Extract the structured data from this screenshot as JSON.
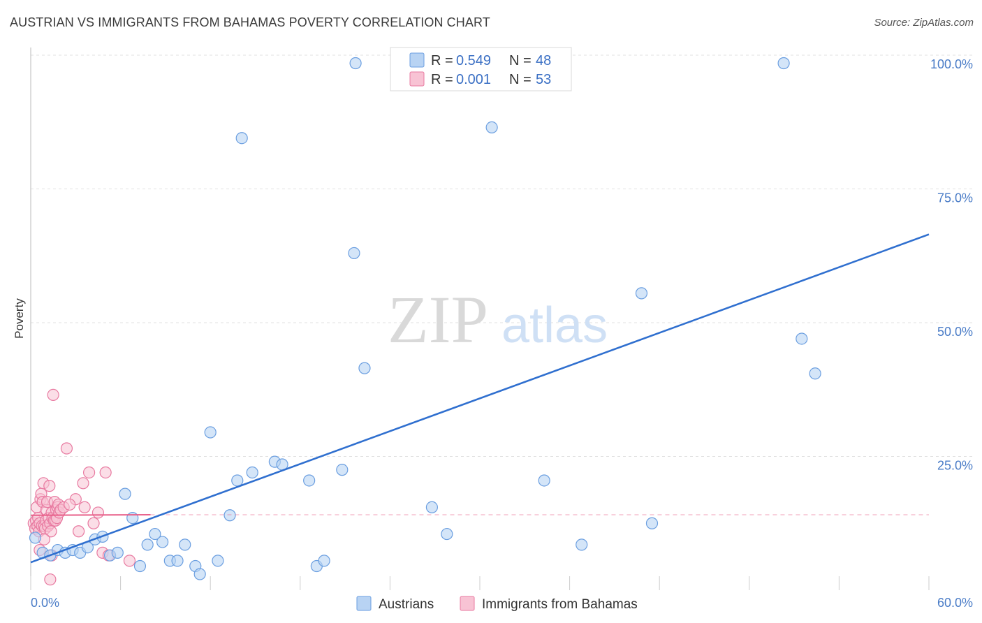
{
  "header": {
    "title": "AUSTRIAN VS IMMIGRANTS FROM BAHAMAS POVERTY CORRELATION CHART",
    "source": "Source: ZipAtlas.com"
  },
  "watermark": {
    "part1": "ZIP",
    "part2": "atlas"
  },
  "colors": {
    "blue_fill": "#b8d3f3",
    "blue_stroke": "#6a9ee0",
    "blue_line": "#2f6fcf",
    "pink_fill": "#f8c3d4",
    "pink_stroke": "#e879a0",
    "pink_line": "#e8608a",
    "axis_text": "#4a7cc7",
    "grid": "#e0e0e0"
  },
  "legend": {
    "items": [
      {
        "r_label": "R = ",
        "r_value": "0.549",
        "n_label": "N = ",
        "n_value": "48"
      },
      {
        "r_label": "R = ",
        "r_value": "0.001",
        "n_label": "N = ",
        "n_value": "53"
      }
    ]
  },
  "chart_data": {
    "type": "scatter",
    "title": "AUSTRIAN VS IMMIGRANTS FROM BAHAMAS POVERTY CORRELATION CHART",
    "xlabel": "",
    "ylabel": "Poverty",
    "xlim": [
      0,
      60
    ],
    "ylim": [
      0,
      100
    ],
    "x_tick_labels": [
      "0.0%",
      "60.0%"
    ],
    "y_ticks": [
      25,
      50,
      75,
      100
    ],
    "y_tick_labels": [
      "25.0%",
      "50.0%",
      "75.0%",
      "100.0%"
    ],
    "legend_position": "bottom-center",
    "series": [
      {
        "name": "Austrians",
        "color": "#6a9ee0",
        "trend": {
          "x": [
            0,
            60
          ],
          "y": [
            5.2,
            66.5
          ]
        },
        "points": [
          [
            0.3,
            9.8
          ],
          [
            0.8,
            7.0
          ],
          [
            1.3,
            6.5
          ],
          [
            1.8,
            7.5
          ],
          [
            2.3,
            7.0
          ],
          [
            2.8,
            7.5
          ],
          [
            3.3,
            7.0
          ],
          [
            3.8,
            8.0
          ],
          [
            4.3,
            9.5
          ],
          [
            4.8,
            10.0
          ],
          [
            5.3,
            6.5
          ],
          [
            5.8,
            7.0
          ],
          [
            6.3,
            18.0
          ],
          [
            6.8,
            13.5
          ],
          [
            7.3,
            4.5
          ],
          [
            7.8,
            8.5
          ],
          [
            8.3,
            10.5
          ],
          [
            8.8,
            9.0
          ],
          [
            9.3,
            5.5
          ],
          [
            9.8,
            5.5
          ],
          [
            10.3,
            8.5
          ],
          [
            11.0,
            4.5
          ],
          [
            11.3,
            3.0
          ],
          [
            12.0,
            29.5
          ],
          [
            12.5,
            5.5
          ],
          [
            13.3,
            14.0
          ],
          [
            13.8,
            20.5
          ],
          [
            14.1,
            84.5
          ],
          [
            14.8,
            22.0
          ],
          [
            16.3,
            24.0
          ],
          [
            16.8,
            23.5
          ],
          [
            18.6,
            20.5
          ],
          [
            19.1,
            4.5
          ],
          [
            19.6,
            5.5
          ],
          [
            20.8,
            22.5
          ],
          [
            21.6,
            63.0
          ],
          [
            21.7,
            98.5
          ],
          [
            22.3,
            41.5
          ],
          [
            26.8,
            15.5
          ],
          [
            27.8,
            10.5
          ],
          [
            30.8,
            86.5
          ],
          [
            34.3,
            20.5
          ],
          [
            36.8,
            8.5
          ],
          [
            40.8,
            55.5
          ],
          [
            41.5,
            12.5
          ],
          [
            50.3,
            98.5
          ],
          [
            51.5,
            47.0
          ],
          [
            52.4,
            40.5
          ]
        ]
      },
      {
        "name": "Immigrants from Bahamas",
        "color": "#e879a0",
        "trend": {
          "x": [
            0,
            8
          ],
          "y": [
            14.0,
            14.1
          ]
        },
        "trend_dashed_extent": [
          8,
          60
        ],
        "points": [
          [
            0.2,
            12.5
          ],
          [
            0.3,
            11.5
          ],
          [
            0.35,
            13.0
          ],
          [
            0.4,
            15.5
          ],
          [
            0.45,
            12.0
          ],
          [
            0.5,
            13.5
          ],
          [
            0.55,
            11.0
          ],
          [
            0.6,
            12.5
          ],
          [
            0.65,
            17.0
          ],
          [
            0.7,
            18.0
          ],
          [
            0.75,
            12.0
          ],
          [
            0.8,
            16.5
          ],
          [
            0.85,
            20.0
          ],
          [
            0.9,
            12.0
          ],
          [
            0.95,
            11.5
          ],
          [
            1.0,
            13.0
          ],
          [
            1.05,
            15.0
          ],
          [
            1.1,
            16.5
          ],
          [
            1.15,
            12.0
          ],
          [
            1.2,
            13.5
          ],
          [
            1.25,
            19.5
          ],
          [
            1.3,
            12.5
          ],
          [
            1.35,
            11.0
          ],
          [
            1.4,
            14.5
          ],
          [
            1.45,
            13.5
          ],
          [
            1.5,
            36.5
          ],
          [
            1.55,
            13.0
          ],
          [
            1.6,
            16.5
          ],
          [
            1.65,
            13.0
          ],
          [
            1.7,
            15.0
          ],
          [
            1.75,
            13.5
          ],
          [
            1.8,
            15.5
          ],
          [
            1.85,
            16.0
          ],
          [
            1.9,
            14.5
          ],
          [
            2.0,
            15.0
          ],
          [
            2.2,
            15.5
          ],
          [
            2.4,
            26.5
          ],
          [
            3.0,
            17.0
          ],
          [
            3.2,
            11.0
          ],
          [
            3.6,
            15.5
          ],
          [
            3.9,
            22.0
          ],
          [
            4.2,
            12.5
          ],
          [
            4.5,
            14.5
          ],
          [
            4.8,
            7.0
          ],
          [
            5.0,
            22.0
          ],
          [
            5.2,
            6.5
          ],
          [
            6.6,
            5.5
          ],
          [
            0.6,
            7.5
          ],
          [
            1.3,
            2.0
          ],
          [
            2.6,
            16.0
          ],
          [
            3.5,
            20.0
          ],
          [
            0.9,
            9.5
          ],
          [
            1.4,
            6.5
          ]
        ]
      }
    ]
  },
  "bottom_legend": {
    "items": [
      "Austrians",
      "Immigrants from Bahamas"
    ]
  }
}
